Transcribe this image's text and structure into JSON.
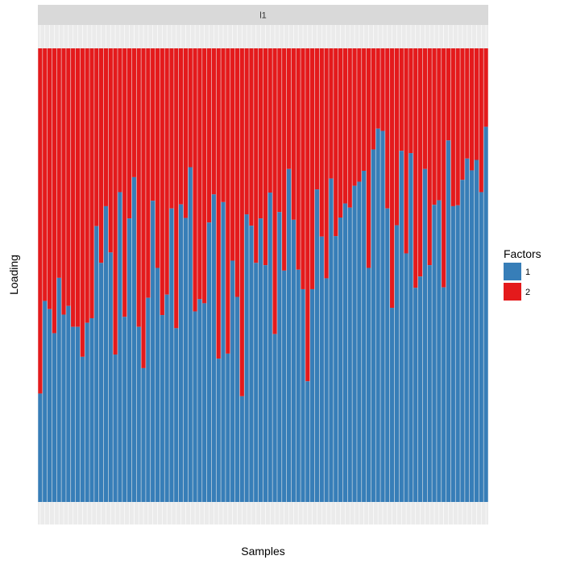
{
  "chart_data": {
    "type": "bar",
    "stacked": true,
    "normalized": true,
    "panel_label": "l1",
    "xlabel": "Samples",
    "ylabel": "Loading",
    "ylim": [
      0,
      1
    ],
    "x_tick_labels": "none",
    "grid": true,
    "legend": {
      "title": "Factors",
      "placement": "right",
      "entries": [
        "1",
        "2"
      ]
    },
    "series": [
      {
        "name": "1",
        "color": "#377EB8",
        "values": [
          0.239,
          0.443,
          0.425,
          0.372,
          0.494,
          0.413,
          0.432,
          0.386,
          0.386,
          0.32,
          0.395,
          0.405,
          0.608,
          0.527,
          0.652,
          0.55,
          0.325,
          0.683,
          0.408,
          0.625,
          0.716,
          0.386,
          0.295,
          0.45,
          0.664,
          0.516,
          0.412,
          0.457,
          0.647,
          0.383,
          0.656,
          0.626,
          0.738,
          0.42,
          0.447,
          0.438,
          0.616,
          0.678,
          0.316,
          0.661,
          0.327,
          0.532,
          0.452,
          0.233,
          0.634,
          0.609,
          0.527,
          0.625,
          0.522,
          0.682,
          0.37,
          0.639,
          0.51,
          0.734,
          0.622,
          0.512,
          0.469,
          0.266,
          0.469,
          0.689,
          0.585,
          0.493,
          0.713,
          0.586,
          0.627,
          0.658,
          0.649,
          0.697,
          0.706,
          0.73,
          0.516,
          0.777,
          0.823,
          0.818,
          0.647,
          0.428,
          0.61,
          0.774,
          0.548,
          0.769,
          0.472,
          0.497,
          0.734,
          0.522,
          0.655,
          0.665,
          0.473,
          0.797,
          0.652,
          0.654,
          0.71,
          0.757,
          0.731,
          0.754,
          0.683,
          0.827
        ]
      },
      {
        "name": "2",
        "color": "#E41A1C",
        "values": [
          0.761,
          0.557,
          0.575,
          0.628,
          0.506,
          0.587,
          0.568,
          0.614,
          0.614,
          0.68,
          0.605,
          0.595,
          0.392,
          0.473,
          0.348,
          0.45,
          0.675,
          0.317,
          0.592,
          0.375,
          0.284,
          0.614,
          0.705,
          0.55,
          0.336,
          0.484,
          0.588,
          0.543,
          0.353,
          0.617,
          0.344,
          0.374,
          0.262,
          0.58,
          0.553,
          0.562,
          0.384,
          0.322,
          0.684,
          0.339,
          0.673,
          0.468,
          0.548,
          0.767,
          0.366,
          0.391,
          0.473,
          0.375,
          0.478,
          0.318,
          0.63,
          0.361,
          0.49,
          0.266,
          0.378,
          0.488,
          0.531,
          0.734,
          0.531,
          0.311,
          0.415,
          0.507,
          0.287,
          0.414,
          0.373,
          0.342,
          0.351,
          0.303,
          0.294,
          0.27,
          0.484,
          0.223,
          0.177,
          0.182,
          0.353,
          0.572,
          0.39,
          0.226,
          0.452,
          0.231,
          0.528,
          0.503,
          0.266,
          0.478,
          0.345,
          0.335,
          0.527,
          0.203,
          0.348,
          0.346,
          0.29,
          0.243,
          0.269,
          0.246,
          0.317,
          0.173
        ]
      }
    ]
  }
}
